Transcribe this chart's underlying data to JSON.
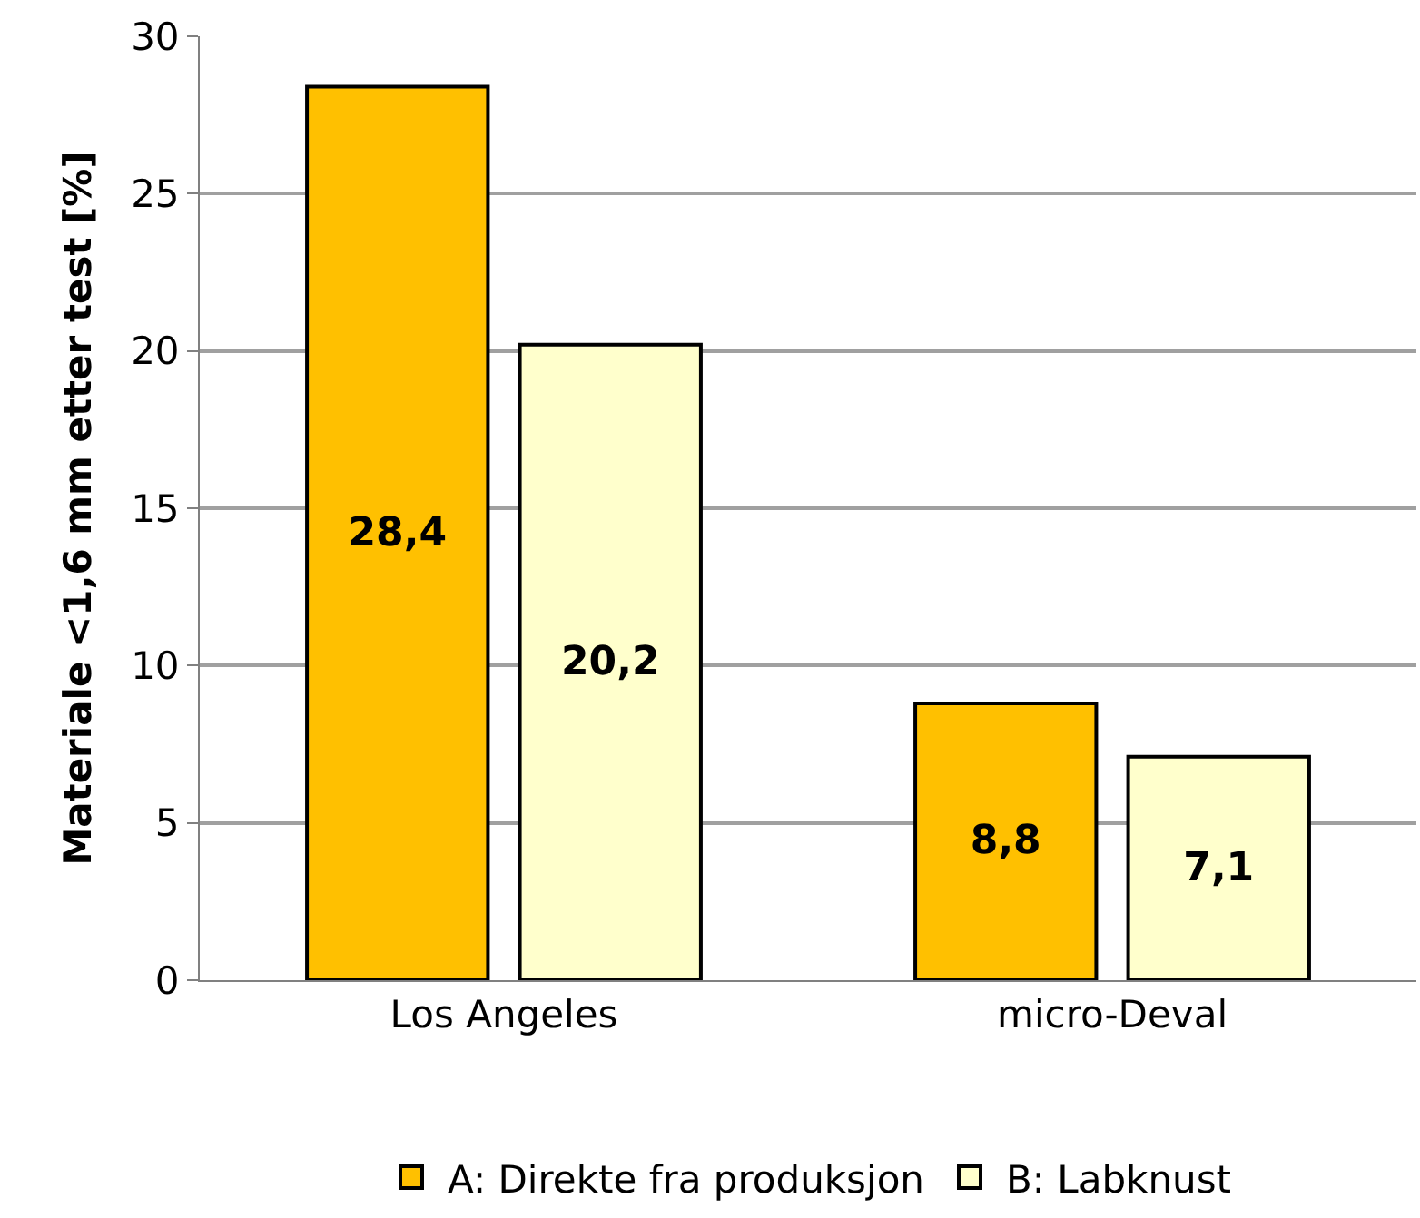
{
  "chart_data": {
    "type": "bar",
    "ylabel": "Materiale <1,6 mm etter test [%]",
    "categories": [
      "Los Angeles",
      "micro-Deval"
    ],
    "series": [
      {
        "name": "A: Direkte fra produksjon",
        "color": "#ffc000",
        "values": [
          28.4,
          8.8
        ],
        "value_labels": [
          "28,4",
          "8,8"
        ]
      },
      {
        "name": "B: Labknust",
        "color": "#ffffcc",
        "values": [
          20.2,
          7.1
        ],
        "value_labels": [
          "20,2",
          "7,1"
        ]
      }
    ],
    "ylim": [
      0,
      30
    ],
    "yticks": [
      0,
      5,
      10,
      15,
      20,
      25,
      30
    ],
    "grid": "y",
    "legend": "bottom"
  }
}
